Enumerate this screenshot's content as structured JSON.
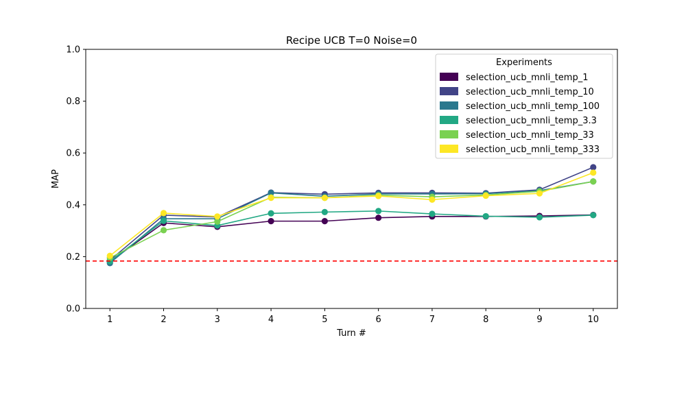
{
  "chart_data": {
    "type": "line",
    "title": "Recipe UCB T=0 Noise=0",
    "xlabel": "Turn #",
    "ylabel": "MAP",
    "x": [
      1,
      2,
      3,
      4,
      5,
      6,
      7,
      8,
      9,
      10
    ],
    "xlim": [
      0.55,
      10.45
    ],
    "ylim": [
      0.0,
      1.0
    ],
    "yticks": [
      0.0,
      0.2,
      0.4,
      0.6,
      0.8,
      1.0
    ],
    "ytick_labels": [
      "0.0",
      "0.2",
      "0.4",
      "0.6",
      "0.8",
      "1.0"
    ],
    "xtick_labels": [
      "1",
      "2",
      "3",
      "4",
      "5",
      "6",
      "7",
      "8",
      "9",
      "10"
    ],
    "grid": false,
    "legend": {
      "title": "Experiments",
      "placement": "upper right"
    },
    "baseline": {
      "value": 0.183,
      "color": "#ff0000",
      "style": "dashed"
    },
    "series": [
      {
        "name": "selection_ucb_mnli_temp_1",
        "color": "#440154",
        "values": [
          0.181,
          0.33,
          0.315,
          0.337,
          0.337,
          0.35,
          0.355,
          0.355,
          0.357,
          0.361
        ]
      },
      {
        "name": "selection_ucb_mnli_temp_10",
        "color": "#414487",
        "values": [
          0.186,
          0.36,
          0.353,
          0.447,
          0.441,
          0.446,
          0.446,
          0.445,
          0.458,
          0.545
        ]
      },
      {
        "name": "selection_ucb_mnli_temp_100",
        "color": "#2a788e",
        "values": [
          0.175,
          0.346,
          0.346,
          0.446,
          0.433,
          0.442,
          0.442,
          0.443,
          0.455,
          0.49
        ]
      },
      {
        "name": "selection_ucb_mnli_temp_3.3",
        "color": "#22a884",
        "values": [
          0.182,
          0.338,
          0.32,
          0.367,
          0.372,
          0.376,
          0.365,
          0.356,
          0.352,
          0.36
        ]
      },
      {
        "name": "selection_ucb_mnli_temp_33",
        "color": "#7ad151",
        "values": [
          0.195,
          0.302,
          0.335,
          0.429,
          0.427,
          0.437,
          0.431,
          0.438,
          0.452,
          0.49
        ]
      },
      {
        "name": "selection_ucb_mnli_temp_333",
        "color": "#fde725",
        "values": [
          0.203,
          0.368,
          0.355,
          0.427,
          0.427,
          0.434,
          0.42,
          0.435,
          0.444,
          0.524
        ]
      }
    ]
  }
}
